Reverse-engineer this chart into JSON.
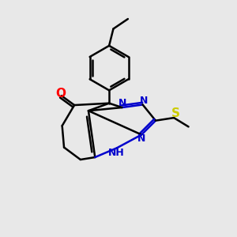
{
  "background_color": "#e8e8e8",
  "bond_color": "#000000",
  "n_color": "#0000cc",
  "o_color": "#ff0000",
  "s_color": "#cccc00",
  "figsize": [
    3.0,
    3.0
  ],
  "dpi": 100,
  "lw": 1.8,
  "fs": 9,
  "xlim": [
    0,
    10
  ],
  "ylim": [
    0,
    10
  ]
}
